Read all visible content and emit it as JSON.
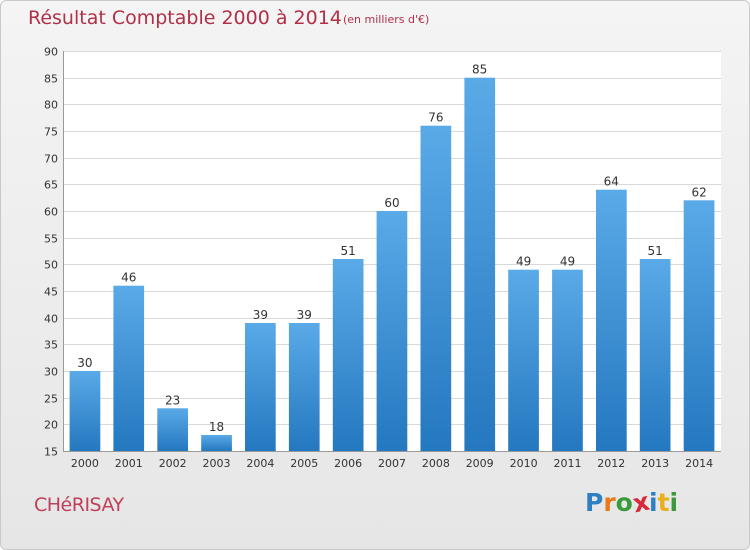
{
  "title": "Résultat Comptable 2000 à 2014",
  "subtitle": "(en milliers d'€)",
  "commune": "CHéRISAY",
  "logo": {
    "text": "Proxiti",
    "letter_colors": [
      "#2f7fc4",
      "#e87a1c",
      "#3a9a3a",
      "#d8293a",
      "#2f7fc4",
      "#e8b01c",
      "#3a9a3a"
    ]
  },
  "colors": {
    "bar_top": "#5aaae8",
    "bar_bottom": "#2478bf",
    "plot_bg": "#ffffff",
    "grid": "#d9d9d9",
    "axis_text": "#333333",
    "title": "#b03048"
  },
  "chart_data": {
    "type": "bar",
    "title": "Résultat Comptable 2000 à 2014",
    "subtitle": "(en milliers d'€)",
    "xlabel": "",
    "ylabel": "",
    "categories": [
      "2000",
      "2001",
      "2002",
      "2003",
      "2004",
      "2005",
      "2006",
      "2007",
      "2008",
      "2009",
      "2010",
      "2011",
      "2012",
      "2013",
      "2014"
    ],
    "values": [
      30,
      46,
      23,
      18,
      39,
      39,
      51,
      60,
      76,
      85,
      49,
      49,
      64,
      51,
      62
    ],
    "ylim": [
      15,
      90
    ],
    "yticks": [
      15,
      20,
      25,
      30,
      35,
      40,
      45,
      50,
      55,
      60,
      65,
      70,
      75,
      80,
      85,
      90
    ],
    "grid": true
  }
}
